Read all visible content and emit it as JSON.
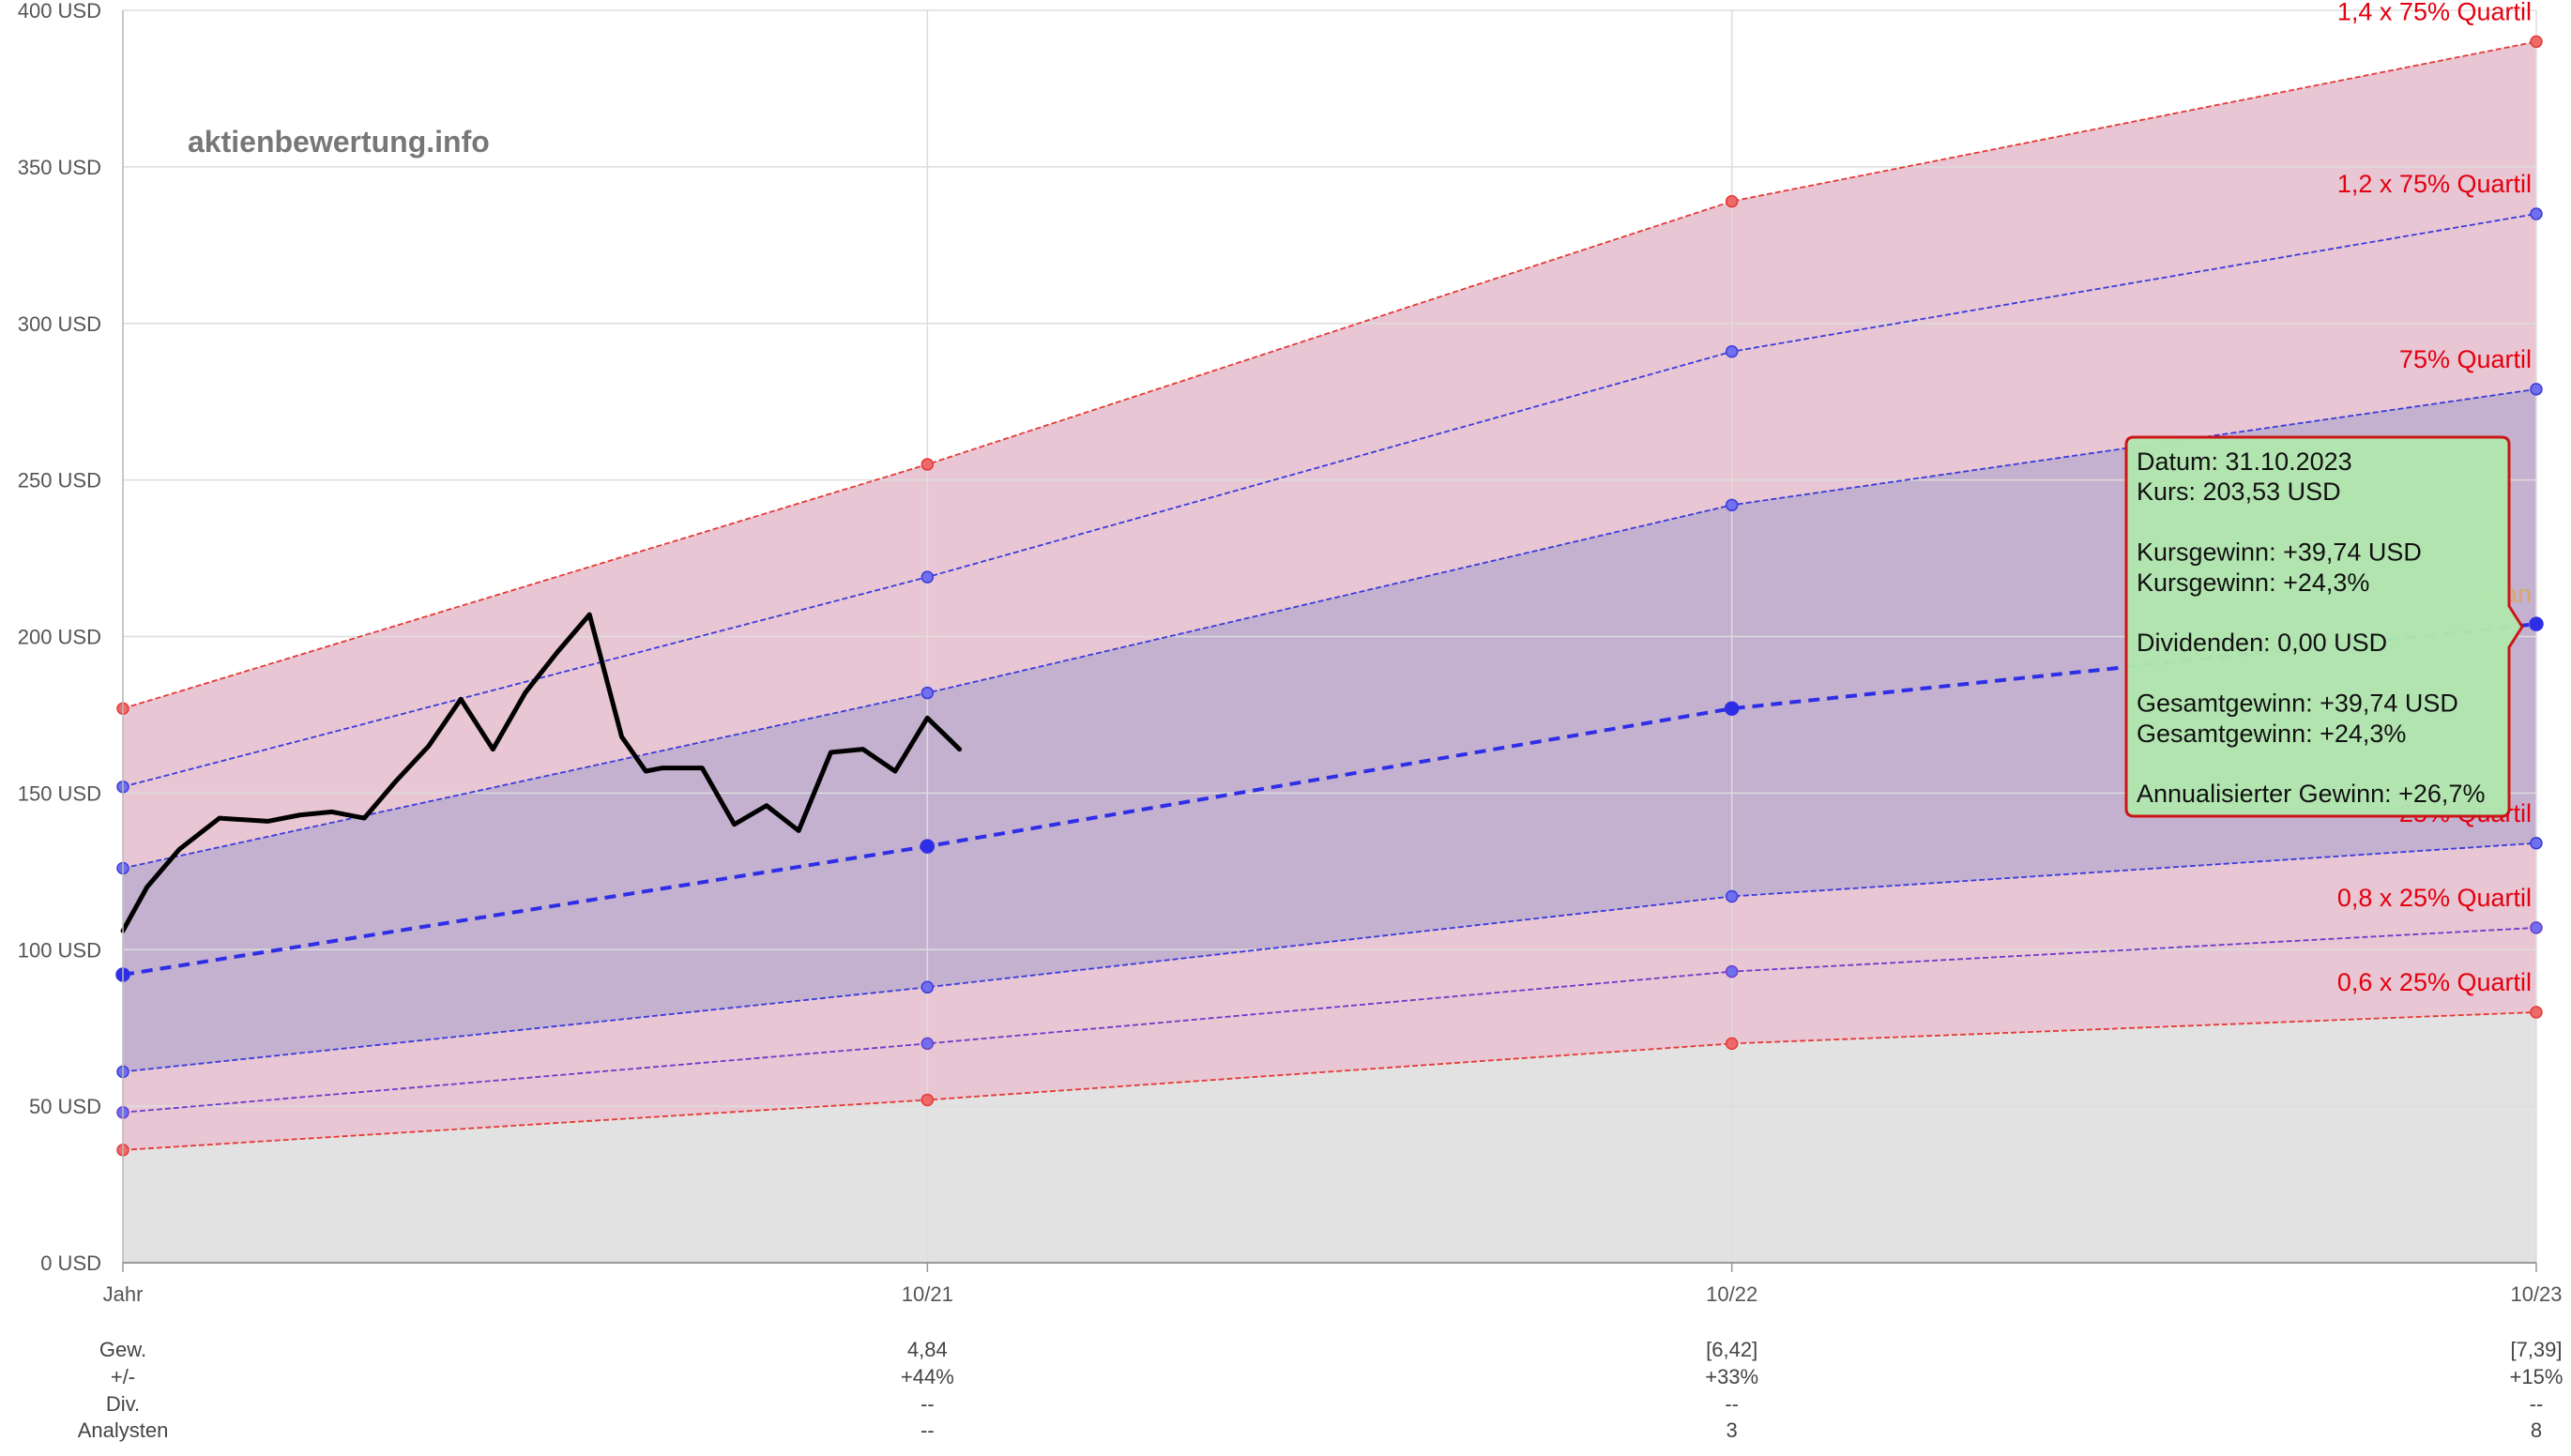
{
  "watermark": "aktienbewertung.info",
  "chart_data": {
    "type": "line",
    "ylim": [
      0,
      400
    ],
    "yticks": [
      0,
      50,
      100,
      150,
      200,
      250,
      300,
      350,
      400
    ],
    "y_unit_suffix": " USD",
    "grid": true,
    "x_categories": [
      "Jahr",
      "10/21",
      "10/22",
      "10/23"
    ],
    "bands": [
      {
        "name": "1,4 x 75% Quartil",
        "values": [
          177,
          255,
          339,
          390
        ],
        "color": "#e53935",
        "labeled": true
      },
      {
        "name": "1,2 x 75% Quartil",
        "values": [
          152,
          219,
          291,
          335
        ],
        "color": "#3b3bdd",
        "labeled": true
      },
      {
        "name": "75% Quartil",
        "values": [
          126,
          182,
          242,
          279
        ],
        "color": "#3b3bdd",
        "labeled": true
      },
      {
        "name": "Median",
        "values": [
          92,
          133,
          177,
          204
        ],
        "color": "#2e2ee6",
        "labeled": true
      },
      {
        "name": "25% Quartil",
        "values": [
          61,
          88,
          117,
          134
        ],
        "color": "#3b3bdd",
        "labeled": true
      },
      {
        "name": "0,8 x 25% Quartil",
        "values": [
          48,
          70,
          93,
          107
        ],
        "color": "#6b3bcc",
        "labeled": true
      },
      {
        "name": "0,6 x 25% Quartil",
        "values": [
          36,
          52,
          70,
          80
        ],
        "color": "#e53935",
        "labeled": true
      }
    ],
    "price_series": {
      "x": [
        0,
        0.03,
        0.07,
        0.12,
        0.18,
        0.22,
        0.26,
        0.3,
        0.34,
        0.38,
        0.42,
        0.46,
        0.5,
        0.54,
        0.58,
        0.62,
        0.65,
        0.67,
        0.72,
        0.76,
        0.8,
        0.84,
        0.88,
        0.92,
        0.96,
        1.0,
        1.04,
        1.06,
        1.1,
        1.12,
        1.16,
        1.2,
        1.23,
        1.25,
        1.26,
        1.29,
        1.3
      ],
      "y": [
        106,
        120,
        132,
        142,
        141,
        143,
        144,
        142,
        154,
        165,
        180,
        164,
        182,
        195,
        207,
        168,
        157,
        158,
        158,
        140,
        146,
        138,
        163,
        164,
        157,
        174,
        164,
        164,
        164,
        164,
        164,
        164,
        164,
        164,
        164,
        164,
        164
      ],
      "points_used": 27,
      "color": "#000000"
    },
    "table": {
      "row_labels": [
        "Gew.",
        "+/-",
        "Div.",
        "Analysten"
      ],
      "columns": [
        {
          "x": "10/21",
          "values": [
            "4,84",
            "+44%",
            "--",
            "--"
          ]
        },
        {
          "x": "10/22",
          "values": [
            "[6,42]",
            "+33%",
            "--",
            "3"
          ]
        },
        {
          "x": "10/23",
          "values": [
            "[7,39]",
            "+15%",
            "--",
            "8"
          ]
        }
      ]
    },
    "tooltip": {
      "lines": [
        "Datum: 31.10.2023",
        "Kurs: 203,53 USD",
        "",
        "Kursgewinn: +39,74 USD",
        "Kursgewinn: +24,3%",
        "",
        "Dividenden: 0,00 USD",
        "",
        "Gesamtgewinn: +39,74 USD",
        "Gesamtgewinn: +24,3%",
        "",
        "Annualisierter Gewinn: +26,7%"
      ],
      "background": "#b2e6b0",
      "border": "#cc1111"
    },
    "colors": {
      "outer_band": "#e8c6d3",
      "inner_band": "#c3b1cf",
      "below_band": "#e2e2e2",
      "grid": "#dddddd",
      "band_label": "#e3000f",
      "median_label": "#d8a86a"
    }
  }
}
